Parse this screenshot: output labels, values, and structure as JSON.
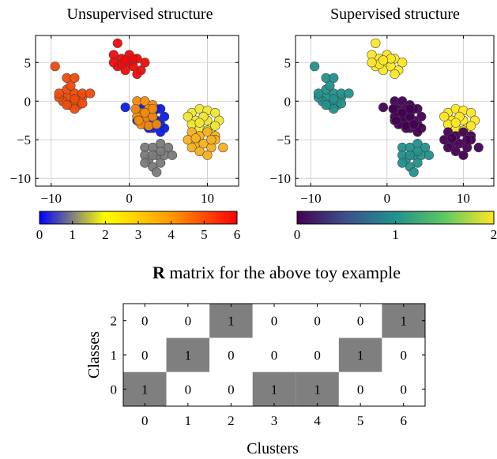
{
  "chart_data": [
    {
      "type": "scatter",
      "title": "Unsupervised structure",
      "xlim": [
        -12,
        14
      ],
      "ylim": [
        -11,
        8.5
      ],
      "xticks": [
        -10,
        0,
        10
      ],
      "yticks": [
        5,
        0,
        -5,
        -10
      ],
      "grid": true,
      "series": [
        {
          "cluster": 0,
          "color": "#0a1ee6",
          "points": [
            [
              1,
              -1
            ],
            [
              1.5,
              -2
            ],
            [
              2,
              -2.5
            ],
            [
              3,
              -1.5
            ],
            [
              4,
              -1
            ],
            [
              4.5,
              -2
            ],
            [
              4,
              -3
            ],
            [
              3,
              -3.5
            ],
            [
              2,
              -3
            ],
            [
              1.5,
              -1
            ],
            [
              2.5,
              -2
            ],
            [
              3.5,
              -2.5
            ],
            [
              4.5,
              -3.5
            ],
            [
              3,
              -2.5
            ],
            [
              2,
              -1.5
            ],
            [
              4,
              -4
            ],
            [
              -0.5,
              -0.8
            ],
            [
              3.5,
              -1
            ],
            [
              1,
              -2.5
            ],
            [
              2.5,
              -3.5
            ]
          ]
        },
        {
          "cluster": 1,
          "color": "#7a7a7a",
          "points": [
            [
              2,
              -6
            ],
            [
              3,
              -6
            ],
            [
              4,
              -5.5
            ],
            [
              5,
              -6
            ],
            [
              3.5,
              -7
            ],
            [
              2.5,
              -7.5
            ],
            [
              4,
              -8
            ],
            [
              3,
              -8.5
            ],
            [
              4.5,
              -7
            ],
            [
              2,
              -7
            ],
            [
              5.5,
              -7
            ],
            [
              3.5,
              -9.2
            ],
            [
              2,
              -8
            ],
            [
              4,
              -6.5
            ],
            [
              3,
              -7
            ]
          ]
        },
        {
          "cluster": 2,
          "color": "#f0e632",
          "points": [
            [
              8,
              -1.5
            ],
            [
              9,
              -1
            ],
            [
              10,
              -1.2
            ],
            [
              11,
              -1.5
            ],
            [
              8.5,
              -2.5
            ],
            [
              10,
              -2.5
            ],
            [
              11.5,
              -2.5
            ],
            [
              9,
              -3.5
            ],
            [
              10.5,
              -3.5
            ],
            [
              8,
              -3
            ],
            [
              9.5,
              -2
            ],
            [
              11,
              -3.2
            ],
            [
              7.5,
              -2
            ],
            [
              10,
              -3.8
            ],
            [
              9,
              -2.8
            ]
          ]
        },
        {
          "cluster": 3,
          "color": "#f7b01e",
          "points": [
            [
              8,
              -4
            ],
            [
              9,
              -4.5
            ],
            [
              10,
              -4
            ],
            [
              11,
              -4.5
            ],
            [
              8.5,
              -5.5
            ],
            [
              9.5,
              -5.5
            ],
            [
              10.5,
              -6
            ],
            [
              8,
              -6
            ],
            [
              12,
              -6
            ],
            [
              9,
              -6.5
            ],
            [
              10,
              -7
            ],
            [
              11,
              -5
            ],
            [
              7.5,
              -5
            ],
            [
              8.5,
              -4.8
            ],
            [
              10.5,
              -5
            ]
          ]
        },
        {
          "cluster": 4,
          "color": "#f58a0a",
          "points": [
            [
              1,
              0
            ],
            [
              2,
              0
            ],
            [
              3,
              -0.5
            ],
            [
              1.5,
              -1.5
            ],
            [
              2.5,
              -1
            ],
            [
              1,
              -2
            ],
            [
              2,
              -2.5
            ],
            [
              3,
              -2
            ],
            [
              1.5,
              -3
            ],
            [
              2.5,
              -3.2
            ],
            [
              0.8,
              -1
            ],
            [
              3,
              -1
            ],
            [
              2,
              -1.5
            ],
            [
              1.2,
              -2.5
            ],
            [
              3.5,
              -3
            ]
          ]
        },
        {
          "cluster": 5,
          "color": "#f04a0a",
          "points": [
            [
              -9.5,
              4.5
            ],
            [
              -8,
              0.5
            ],
            [
              -7,
              1
            ],
            [
              -6,
              0.5
            ],
            [
              -7.5,
              -0.5
            ],
            [
              -6.5,
              -0.5
            ],
            [
              -8.5,
              0
            ],
            [
              -9,
              0.5
            ],
            [
              -7,
              0
            ],
            [
              -6,
              1
            ],
            [
              -5,
              1
            ],
            [
              -8,
              1.5
            ],
            [
              -7.5,
              2
            ],
            [
              -7,
              -1
            ],
            [
              -6,
              -0.3
            ],
            [
              -8,
              3
            ],
            [
              -7,
              3
            ],
            [
              -9,
              1
            ],
            [
              -8,
              -0.5
            ],
            [
              -7,
              0.3
            ]
          ]
        },
        {
          "cluster": 6,
          "color": "#f00a0a",
          "points": [
            [
              -1.5,
              7.5
            ],
            [
              -2,
              6
            ],
            [
              -1,
              5.5
            ],
            [
              0,
              5
            ],
            [
              1,
              5.5
            ],
            [
              -1.5,
              4.5
            ],
            [
              -0.5,
              4
            ],
            [
              0.5,
              4.5
            ],
            [
              1.5,
              4
            ],
            [
              2,
              5
            ],
            [
              -1,
              4.8
            ],
            [
              0,
              6
            ],
            [
              -2,
              5
            ],
            [
              1,
              3.5
            ],
            [
              0.5,
              5.5
            ],
            [
              -0.5,
              5.3
            ]
          ]
        }
      ],
      "colorbar": {
        "type": "colormap",
        "stops": [
          "#0000ff",
          "#ffff00",
          "#ff9a00",
          "#ff0000"
        ],
        "range": [
          0,
          6
        ],
        "tick_labels": [
          "0",
          "1",
          "2",
          "3",
          "4",
          "5",
          "6"
        ]
      }
    },
    {
      "type": "scatter",
      "title": "Supervised structure",
      "xlim": [
        -12,
        14
      ],
      "ylim": [
        -11,
        8.5
      ],
      "xticks": [
        -10,
        0,
        10
      ],
      "yticks": [
        5,
        0,
        -5,
        -10
      ],
      "grid": true,
      "class_colors": [
        "#440154",
        "#21918c",
        "#fde725"
      ],
      "series": [
        {
          "class": 0,
          "clusters": [
            0,
            3,
            4
          ]
        },
        {
          "class": 1,
          "clusters": [
            1,
            5
          ]
        },
        {
          "class": 2,
          "clusters": [
            2,
            6
          ]
        }
      ],
      "colorbar": {
        "type": "colormap",
        "stops": [
          "#440154",
          "#3b528b",
          "#21918c",
          "#5ec962",
          "#fde725"
        ],
        "range": [
          0,
          2
        ],
        "tick_labels": [
          "0",
          "1",
          "2"
        ]
      }
    },
    {
      "type": "heatmap",
      "title_bold": "R",
      "title_rest": " matrix for the above toy example",
      "xlabel": "Clusters",
      "ylabel": "Classes",
      "x": [
        "0",
        "1",
        "2",
        "3",
        "4",
        "5",
        "6"
      ],
      "y": [
        "0",
        "1",
        "2"
      ],
      "values": [
        [
          1,
          0,
          0,
          1,
          1,
          0,
          0
        ],
        [
          0,
          1,
          0,
          0,
          0,
          1,
          0
        ],
        [
          0,
          0,
          1,
          0,
          0,
          0,
          1
        ]
      ],
      "fill_color": "#7f7f7f"
    }
  ]
}
